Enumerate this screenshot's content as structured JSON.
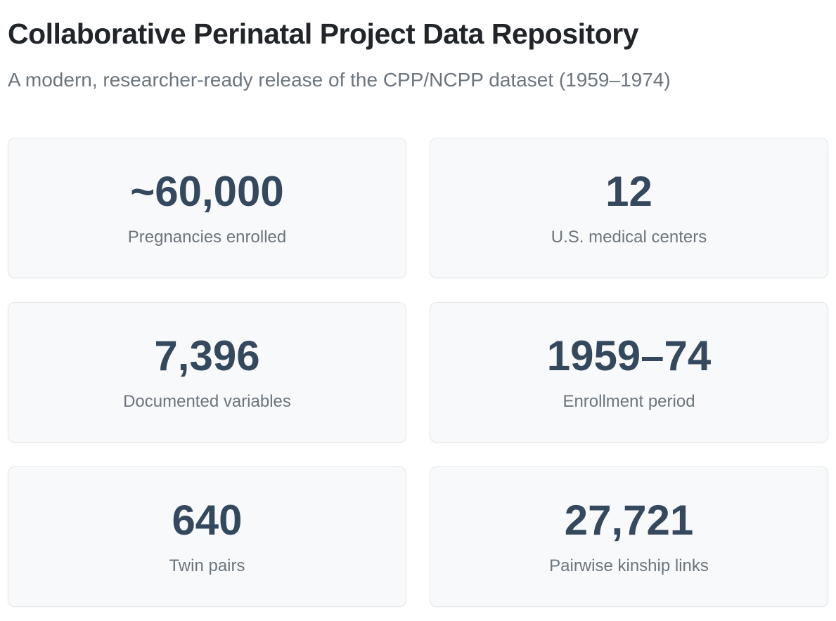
{
  "page": {
    "title": "Collaborative Perinatal Project Data Repository",
    "subtitle": "A modern, researcher-ready release of the CPP/NCPP dataset (1959–1974)"
  },
  "colors": {
    "heading": "#212529",
    "subtitle_gray": "#6c757d",
    "stat_number": "#34495e",
    "stat_label": "#6c757d",
    "card_background": "#f8f9fa",
    "card_border": "#e4e8eb",
    "page_background": "#ffffff"
  },
  "stats": [
    {
      "value": "~60,000",
      "label": "Pregnancies enrolled"
    },
    {
      "value": "12",
      "label": "U.S. medical centers"
    },
    {
      "value": "7,396",
      "label": "Documented variables"
    },
    {
      "value": "1959–74",
      "label": "Enrollment period"
    },
    {
      "value": "640",
      "label": "Twin pairs"
    },
    {
      "value": "27,721",
      "label": "Pairwise kinship links"
    }
  ]
}
